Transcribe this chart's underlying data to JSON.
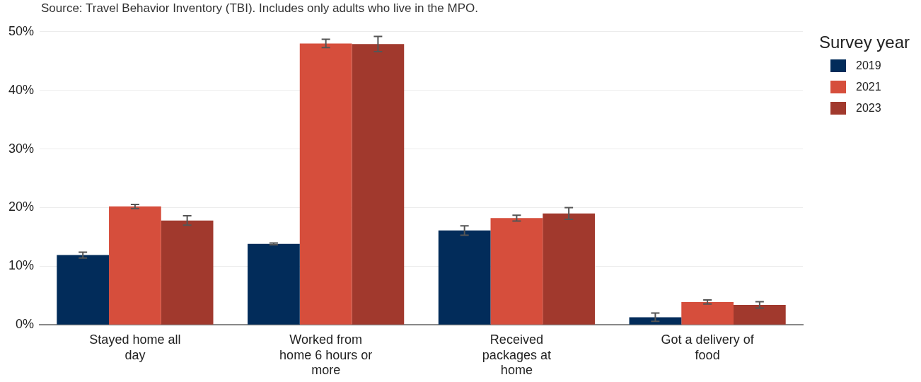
{
  "chart_data": {
    "type": "bar",
    "annotations": [
      "Source: Travel Behavior Inventory (TBI). Includes only adults who live in the MPO."
    ],
    "categories": [
      "Stayed home all day",
      "Worked from home 6 hours or more",
      "Received packages at home",
      "Got a delivery of food"
    ],
    "legend_title": "Survey year",
    "legend": "top right",
    "grid": "y",
    "ylim": [
      0,
      50
    ],
    "yticks": [
      {
        "value": 0,
        "label": "0%"
      },
      {
        "value": 10,
        "label": "10%"
      },
      {
        "value": 20,
        "label": "20%"
      },
      {
        "value": 30,
        "label": "30%"
      },
      {
        "value": 40,
        "label": "40%"
      },
      {
        "value": 50,
        "label": "50%"
      }
    ],
    "series": [
      {
        "name": "2019",
        "color": "#022c5a",
        "values": [
          11.9,
          13.8,
          16.1,
          1.3
        ],
        "errors": [
          0.5,
          0.15,
          0.8,
          0.7
        ]
      },
      {
        "name": "2021",
        "color": "#d64e3c",
        "values": [
          20.2,
          48.0,
          18.2,
          3.9
        ],
        "errors": [
          0.35,
          0.7,
          0.5,
          0.35
        ]
      },
      {
        "name": "2023",
        "color": "#a1392d",
        "values": [
          17.8,
          47.9,
          19.0,
          3.4
        ],
        "errors": [
          0.8,
          1.3,
          1.0,
          0.55
        ]
      }
    ]
  }
}
